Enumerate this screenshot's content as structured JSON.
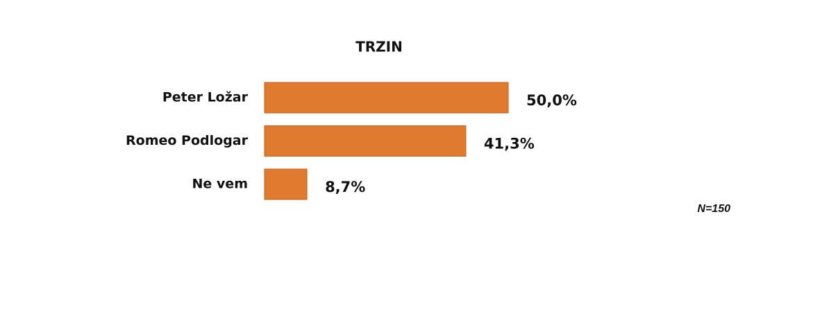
{
  "chart_data": {
    "type": "bar",
    "orientation": "horizontal",
    "title": "TRZIN",
    "categories": [
      "Peter Ložar",
      "Romeo Podlogar",
      "Ne vem"
    ],
    "values": [
      50.0,
      41.3,
      8.7
    ],
    "value_labels": [
      "50,0%",
      "41,3%",
      "8,7%"
    ],
    "color": "#e07a2e",
    "annotation": "N=150"
  }
}
